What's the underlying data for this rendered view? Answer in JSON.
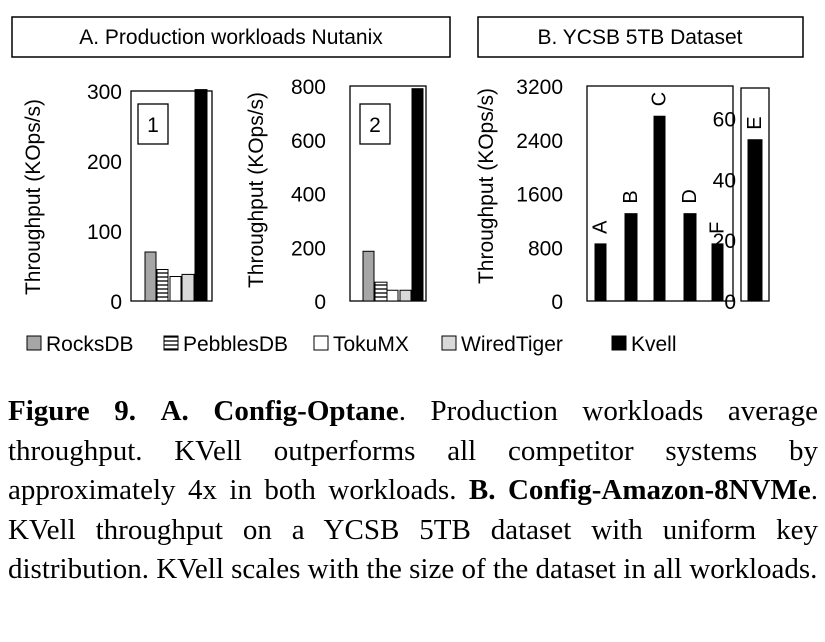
{
  "panel_titles": {
    "a": "A. Production workloads Nutanix",
    "b": "B. YCSB 5TB Dataset"
  },
  "legend": [
    {
      "name": "RocksDB",
      "style": "rocks"
    },
    {
      "name": "PebblesDB",
      "style": "pebbles"
    },
    {
      "name": "TokuMX",
      "style": "toku"
    },
    {
      "name": "WiredTiger",
      "style": "wired"
    },
    {
      "name": "Kvell",
      "style": "kvell"
    }
  ],
  "colors": {
    "rocks": "#a6a6a6",
    "toku": "#ffffff",
    "wired": "#d9d9d9",
    "kvell": "#000000",
    "axis": "#000000"
  },
  "caption": {
    "fig_label": "Figure 9.",
    "a_label": "A. Config-Optane",
    "a_text": ". Production workloads average throughput. KVell outperforms all competitor systems by approximately 4x in both workloads.",
    "b_label": "B. Config-Amazon-8NVMe",
    "b_text": ". KVell throughput on a YCSB 5TB dataset with uniform key distribution. KVell scales with the size of the dataset in all workloads."
  },
  "chart_data": [
    {
      "type": "bar",
      "panel": "A",
      "box_label": "1",
      "ylabel": "Throughput (KOps/s)",
      "ylim": [
        0,
        300
      ],
      "yticks": [
        0,
        100,
        200,
        300
      ],
      "categories": [
        "RocksDB",
        "PebblesDB",
        "TokuMX",
        "WiredTiger",
        "Kvell"
      ],
      "values": [
        70,
        45,
        35,
        38,
        302
      ]
    },
    {
      "type": "bar",
      "panel": "A",
      "box_label": "2",
      "ylabel": "Throughput (KOps/s)",
      "ylim": [
        0,
        800
      ],
      "yticks": [
        0,
        200,
        400,
        600,
        800
      ],
      "categories": [
        "RocksDB",
        "PebblesDB",
        "TokuMX",
        "WiredTiger",
        "Kvell"
      ],
      "values": [
        185,
        70,
        40,
        40,
        790
      ]
    },
    {
      "type": "bar",
      "panel": "B",
      "ylabel": "Throughput (KOps/s)",
      "ylim": [
        0,
        3200
      ],
      "yticks": [
        0,
        800,
        1600,
        2400,
        3200
      ],
      "categories": [
        "A",
        "B",
        "C",
        "D",
        "F"
      ],
      "values": [
        850,
        1300,
        2750,
        1300,
        850
      ],
      "series_name": "Kvell"
    },
    {
      "type": "bar",
      "panel": "B",
      "ylim": [
        0,
        70
      ],
      "yticks": [
        0,
        20,
        40,
        60
      ],
      "categories": [
        "E"
      ],
      "values": [
        53
      ],
      "series_name": "Kvell"
    }
  ]
}
